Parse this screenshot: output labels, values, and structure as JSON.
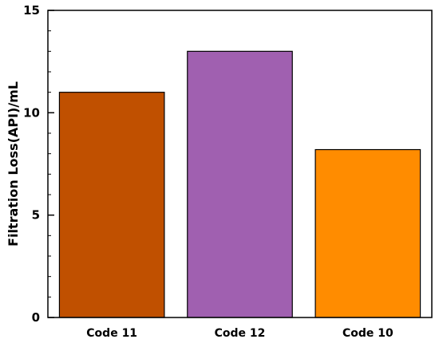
{
  "chart_data": {
    "type": "bar",
    "title": "",
    "xlabel": "",
    "ylabel": "Filtration Loss(API)/mL",
    "categories": [
      "Code 11",
      "Code 12",
      "Code 10"
    ],
    "values": [
      11,
      13,
      8.2
    ],
    "colors": [
      "#c05000",
      "#a060b0",
      "#ff8c00"
    ],
    "ylim": [
      0,
      15
    ],
    "yticks_major": [
      0,
      5,
      10,
      15
    ],
    "yticks_minor_step": 1,
    "grid": false,
    "legend": "none"
  }
}
